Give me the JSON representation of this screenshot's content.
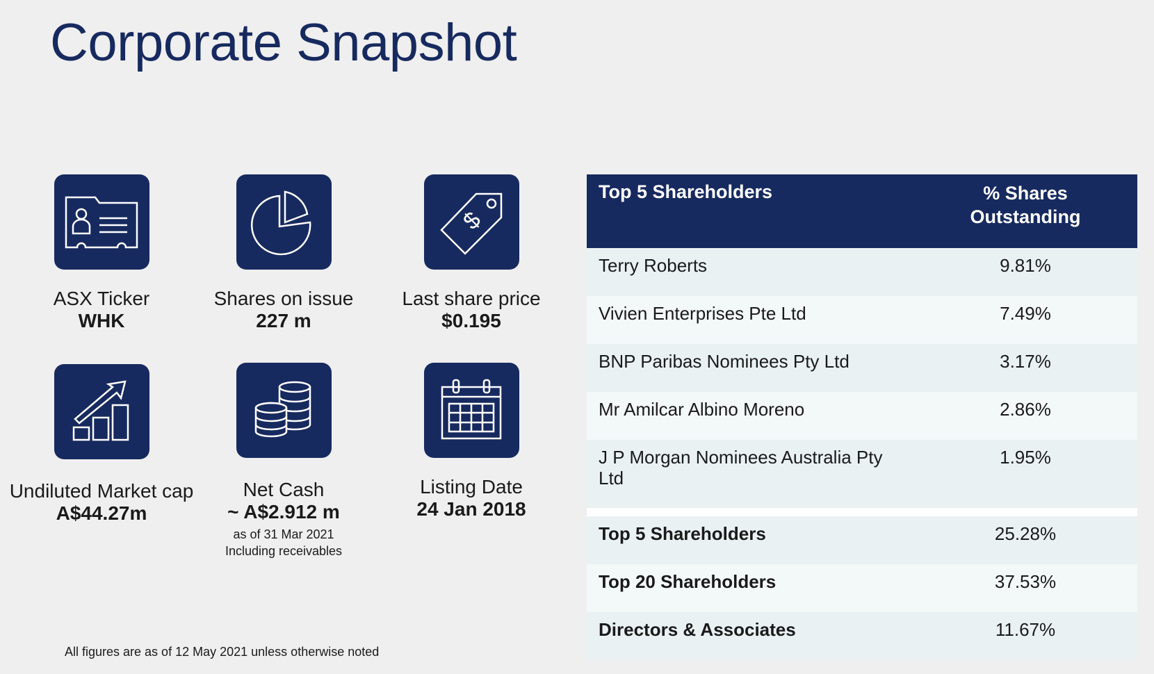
{
  "title": "Corporate Snapshot",
  "metrics": [
    {
      "label": "ASX Ticker",
      "value": "WHK",
      "icon": "id-card-icon"
    },
    {
      "label": "Shares on issue",
      "value": "227 m",
      "icon": "pie-chart-icon"
    },
    {
      "label": "Last share price",
      "value": "$0.195",
      "icon": "price-tag-icon"
    },
    {
      "label": "Undiluted Market cap",
      "value": "A$44.27m",
      "icon": "growth-chart-icon"
    },
    {
      "label": "Net Cash",
      "value": "~ A$2.912 m",
      "note1": "as of 31 Mar 2021",
      "note2": "Including receivables",
      "icon": "coins-icon"
    },
    {
      "label": "Listing Date",
      "value": "24 Jan 2018",
      "icon": "calendar-icon"
    }
  ],
  "footnote": "All figures are as of 12 May 2021 unless otherwise noted",
  "table": {
    "header": {
      "col1": "Top 5 Shareholders",
      "col2_line1": "% Shares",
      "col2_line2": "Outstanding"
    },
    "rows": [
      {
        "name": "Terry Roberts",
        "pct": "9.81%"
      },
      {
        "name": "Vivien Enterprises Pte Ltd",
        "pct": "7.49%"
      },
      {
        "name": "BNP Paribas Nominees Pty Ltd",
        "pct": "3.17%"
      },
      {
        "name": "Mr Amilcar Albino Moreno",
        "pct": "2.86%"
      },
      {
        "name_line1": "J P Morgan Nominees Australia Pty",
        "name_line2": "Ltd",
        "pct": "1.95%"
      }
    ],
    "summary": [
      {
        "name": "Top 5 Shareholders",
        "pct": "25.28%"
      },
      {
        "name": "Top 20 Shareholders",
        "pct": "37.53%"
      },
      {
        "name": "Directors & Associates",
        "pct": "11.67%"
      }
    ]
  },
  "colors": {
    "navy": "#172a5f",
    "background": "#efefef",
    "row_light": "#f3f8f9",
    "row_tint": "#e9f1f3"
  }
}
